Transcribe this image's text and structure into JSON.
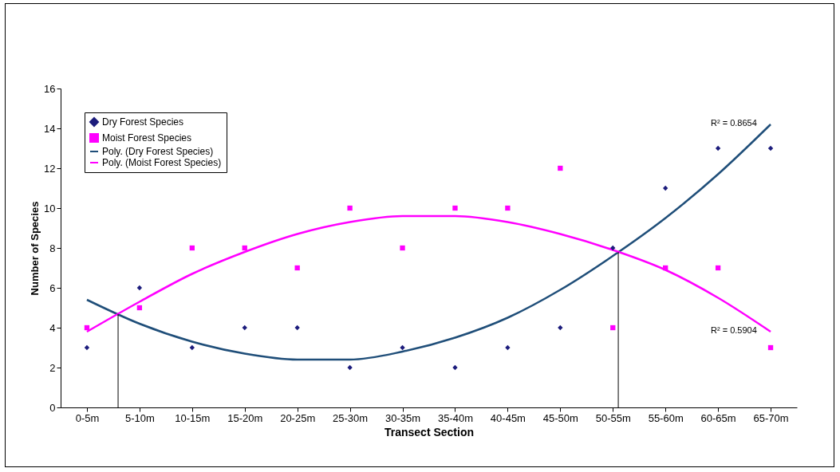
{
  "chart_data": {
    "type": "scatter",
    "xlabel": "Transect Section",
    "ylabel": "Number of Species",
    "categories": [
      "0-5m",
      "5-10m",
      "10-15m",
      "15-20m",
      "20-25m",
      "25-30m",
      "30-35m",
      "35-40m",
      "40-45m",
      "45-50m",
      "50-55m",
      "55-60m",
      "60-65m",
      "65-70m"
    ],
    "ylim": [
      0,
      16
    ],
    "yticks": [
      0,
      2,
      4,
      6,
      8,
      10,
      12,
      14,
      16
    ],
    "grid": false,
    "legend": "top left",
    "series": [
      {
        "name": "Dry Forest Species",
        "marker": "diamond",
        "color": "#1c1c7c",
        "values": [
          3,
          6,
          3,
          4,
          4,
          2,
          3,
          2,
          3,
          4,
          8,
          11,
          13,
          13
        ]
      },
      {
        "name": "Moist Forest Species",
        "marker": "square",
        "color": "#ff00ff",
        "values": [
          4,
          5,
          8,
          8,
          7,
          10,
          8,
          10,
          10,
          12,
          4,
          7,
          7,
          3
        ]
      },
      {
        "name": "Poly. (Dry Forest Species)",
        "type": "line",
        "color": "#1f4e79",
        "values": [
          5.4,
          4.2,
          3.3,
          2.7,
          2.4,
          2.4,
          2.8,
          3.5,
          4.5,
          5.9,
          7.6,
          9.5,
          11.7,
          14.2
        ]
      },
      {
        "name": "Poly. (Moist Forest Species)",
        "type": "line",
        "color": "#ff00ff",
        "values": [
          3.8,
          5.3,
          6.7,
          7.8,
          8.7,
          9.3,
          9.6,
          9.6,
          9.3,
          8.7,
          7.9,
          6.9,
          5.5,
          3.8
        ]
      }
    ],
    "annotations": [
      "R² = 0.8654",
      "R² = 0.5904"
    ]
  }
}
